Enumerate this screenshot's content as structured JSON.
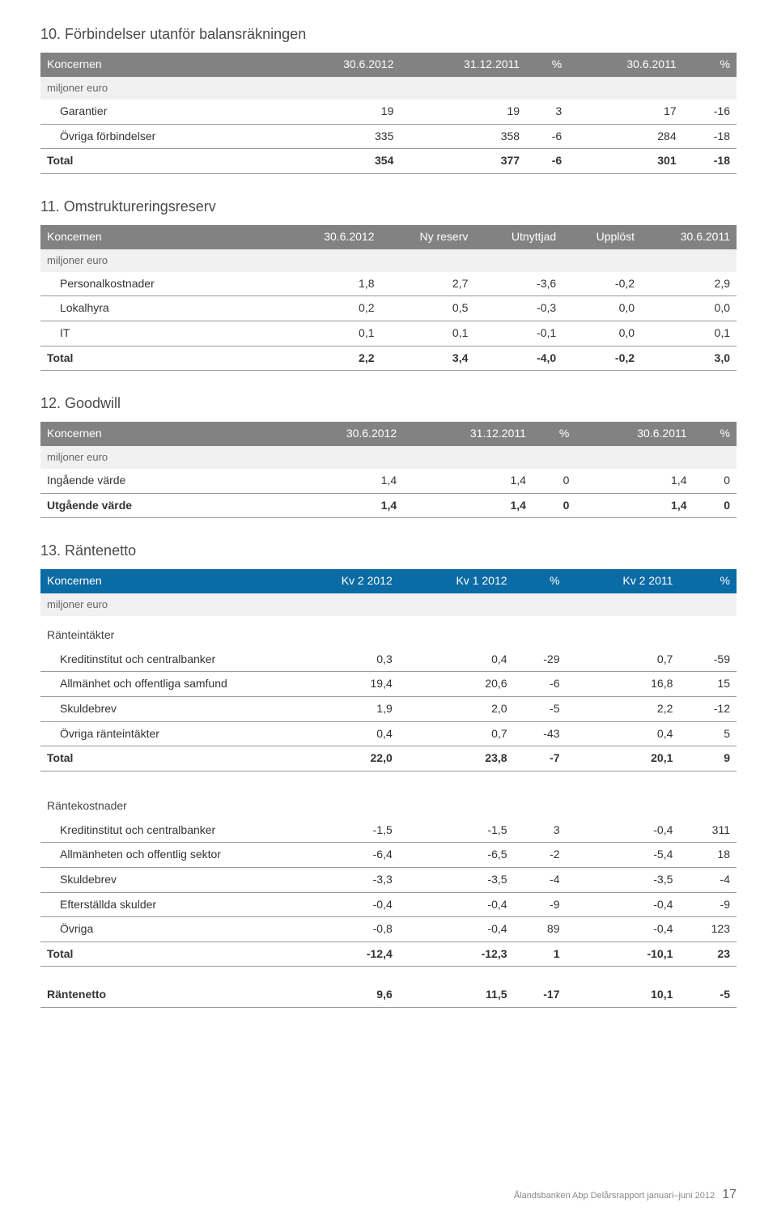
{
  "sections": {
    "s10": {
      "title": "10. Förbindelser utanför balansräkningen",
      "header": [
        "Koncernen",
        "30.6.2012",
        "31.12.2011",
        "%",
        "30.6.2011",
        "%"
      ],
      "sublabel": "miljoner euro",
      "rows": [
        {
          "label": "Garantier",
          "v": [
            "19",
            "19",
            "3",
            "17",
            "-16"
          ],
          "indent": true
        },
        {
          "label": "Övriga förbindelser",
          "v": [
            "335",
            "358",
            "-6",
            "284",
            "-18"
          ],
          "indent": true
        }
      ],
      "total": {
        "label": "Total",
        "v": [
          "354",
          "377",
          "-6",
          "301",
          "-18"
        ]
      }
    },
    "s11": {
      "title": "11. Omstruktureringsreserv",
      "header": [
        "Koncernen",
        "30.6.2012",
        "Ny reserv",
        "Utnyttjad",
        "Upplöst",
        "30.6.2011"
      ],
      "sublabel": "miljoner euro",
      "rows": [
        {
          "label": "Personalkostnader",
          "v": [
            "1,8",
            "2,7",
            "-3,6",
            "-0,2",
            "2,9"
          ],
          "indent": true
        },
        {
          "label": "Lokalhyra",
          "v": [
            "0,2",
            "0,5",
            "-0,3",
            "0,0",
            "0,0"
          ],
          "indent": true
        },
        {
          "label": "IT",
          "v": [
            "0,1",
            "0,1",
            "-0,1",
            "0,0",
            "0,1"
          ],
          "indent": true
        }
      ],
      "total": {
        "label": "Total",
        "v": [
          "2,2",
          "3,4",
          "-4,0",
          "-0,2",
          "3,0"
        ]
      }
    },
    "s12": {
      "title": "12. Goodwill",
      "header": [
        "Koncernen",
        "30.6.2012",
        "31.12.2011",
        "%",
        "30.6.2011",
        "%"
      ],
      "sublabel": "miljoner euro",
      "rows": [
        {
          "label": "Ingående värde",
          "v": [
            "1,4",
            "1,4",
            "0",
            "1,4",
            "0"
          ]
        }
      ],
      "total": {
        "label": "Utgående värde",
        "v": [
          "1,4",
          "1,4",
          "0",
          "1,4",
          "0"
        ]
      }
    },
    "s13": {
      "title": "13. Räntenetto",
      "header": [
        "Koncernen",
        "Kv 2 2012",
        "Kv 1 2012",
        "%",
        "Kv 2 2011",
        "%"
      ],
      "sublabel": "miljoner euro",
      "income_label": "Ränteintäkter",
      "income_rows": [
        {
          "label": "Kreditinstitut och centralbanker",
          "v": [
            "0,3",
            "0,4",
            "-29",
            "0,7",
            "-59"
          ],
          "indent": true
        },
        {
          "label": "Allmänhet och offentliga samfund",
          "v": [
            "19,4",
            "20,6",
            "-6",
            "16,8",
            "15"
          ],
          "indent": true
        },
        {
          "label": "Skuldebrev",
          "v": [
            "1,9",
            "2,0",
            "-5",
            "2,2",
            "-12"
          ],
          "indent": true
        },
        {
          "label": "Övriga ränteintäkter",
          "v": [
            "0,4",
            "0,7",
            "-43",
            "0,4",
            "5"
          ],
          "indent": true
        }
      ],
      "income_total": {
        "label": "Total",
        "v": [
          "22,0",
          "23,8",
          "-7",
          "20,1",
          "9"
        ]
      },
      "expense_label": "Räntekostnader",
      "expense_rows": [
        {
          "label": "Kreditinstitut och centralbanker",
          "v": [
            "-1,5",
            "-1,5",
            "3",
            "-0,4",
            "311"
          ],
          "indent": true
        },
        {
          "label": "Allmänheten och offentlig sektor",
          "v": [
            "-6,4",
            "-6,5",
            "-2",
            "-5,4",
            "18"
          ],
          "indent": true
        },
        {
          "label": "Skuldebrev",
          "v": [
            "-3,3",
            "-3,5",
            "-4",
            "-3,5",
            "-4"
          ],
          "indent": true
        },
        {
          "label": "Efterställda skulder",
          "v": [
            "-0,4",
            "-0,4",
            "-9",
            "-0,4",
            "-9"
          ],
          "indent": true
        },
        {
          "label": "Övriga",
          "v": [
            "-0,8",
            "-0,4",
            "89",
            "-0,4",
            "123"
          ],
          "indent": true
        }
      ],
      "expense_total": {
        "label": "Total",
        "v": [
          "-12,4",
          "-12,3",
          "1",
          "-10,1",
          "23"
        ]
      },
      "net": {
        "label": "Räntenetto",
        "v": [
          "9,6",
          "11,5",
          "-17",
          "10,1",
          "-5"
        ]
      }
    }
  },
  "footer": {
    "text": "Ålandsbanken Abp  Delårsrapport januari–juni 2012",
    "page": "17"
  },
  "style": {
    "header_bg_grey": "#828282",
    "header_bg_blue": "#0a6ba5",
    "header_text": "#ffffff",
    "subhead_bg": "#f0f0f0",
    "row_border": "#999999",
    "text_color": "#333333",
    "title_color": "#4a4a4a",
    "title_fontsize": 18,
    "body_fontsize": 14
  }
}
